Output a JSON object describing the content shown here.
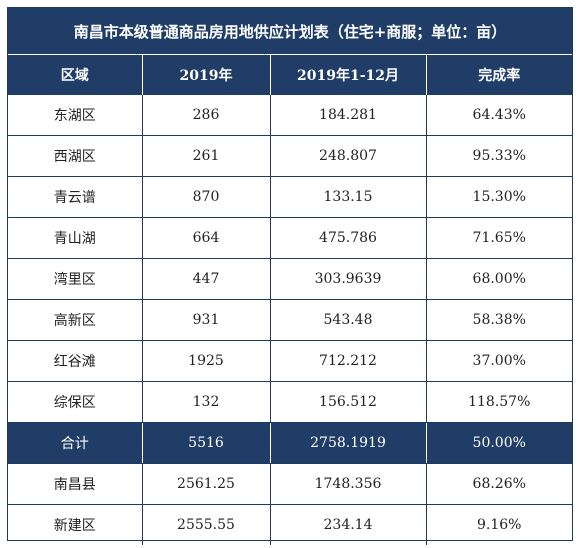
{
  "table": {
    "title": "南昌市本级普通商品房用地供应计划表（住宅+商服；单位：亩）",
    "headers": [
      "区域",
      "2019年",
      "2019年1-12月",
      "完成率"
    ],
    "rows": [
      [
        "东湖区",
        "286",
        "184.281",
        "64.43%"
      ],
      [
        "西湖区",
        "261",
        "248.807",
        "95.33%"
      ],
      [
        "青云谱",
        "870",
        "133.15",
        "15.30%"
      ],
      [
        "青山湖",
        "664",
        "475.786",
        "71.65%"
      ],
      [
        "湾里区",
        "447",
        "303.9639",
        "68.00%"
      ],
      [
        "高新区",
        "931",
        "543.48",
        "58.38%"
      ],
      [
        "红谷滩",
        "1925",
        "712.212",
        "37.00%"
      ],
      [
        "综保区",
        "132",
        "156.512",
        "118.57%"
      ]
    ],
    "total": [
      "合计",
      "5516",
      "2758.1919",
      "50.00%"
    ],
    "extra_rows": [
      [
        "南昌县",
        "2561.25",
        "1748.356",
        "68.26%"
      ],
      [
        "新建区",
        "2555.55",
        "234.14",
        "9.16%"
      ]
    ]
  }
}
